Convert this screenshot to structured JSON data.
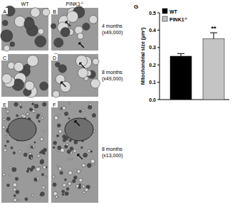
{
  "columns": [
    "WT",
    "PINK1-/-"
  ],
  "rows": [
    {
      "panels": [
        "A",
        "B"
      ],
      "label": "4 months",
      "magnification": "(x49,000)"
    },
    {
      "panels": [
        "C",
        "D"
      ],
      "label": "8 months",
      "magnification": "(x49,000)"
    },
    {
      "panels": [
        "E",
        "F"
      ],
      "label": "8 months",
      "magnification": "(x13,000)"
    }
  ],
  "chart_data": {
    "type": "bar",
    "panel": "G",
    "y_label": "Mitochondrial size (μm²)",
    "categories": [
      null
    ],
    "series": [
      {
        "name": "WT",
        "color": "#000000",
        "values": [
          0.25
        ],
        "errors": [
          0.015
        ]
      },
      {
        "name": "PINK1-/-",
        "color": "#c4c4c4",
        "values": [
          0.35
        ],
        "errors": [
          0.035
        ]
      }
    ],
    "annotations": [
      "**"
    ],
    "ylim": [
      0,
      0.5
    ],
    "yticks": [
      {
        "value": 0,
        "label": "0.0"
      },
      0.1,
      0.2,
      0.3,
      0.4,
      0.5
    ],
    "legend": "upper left",
    "tick_labels": "y"
  }
}
